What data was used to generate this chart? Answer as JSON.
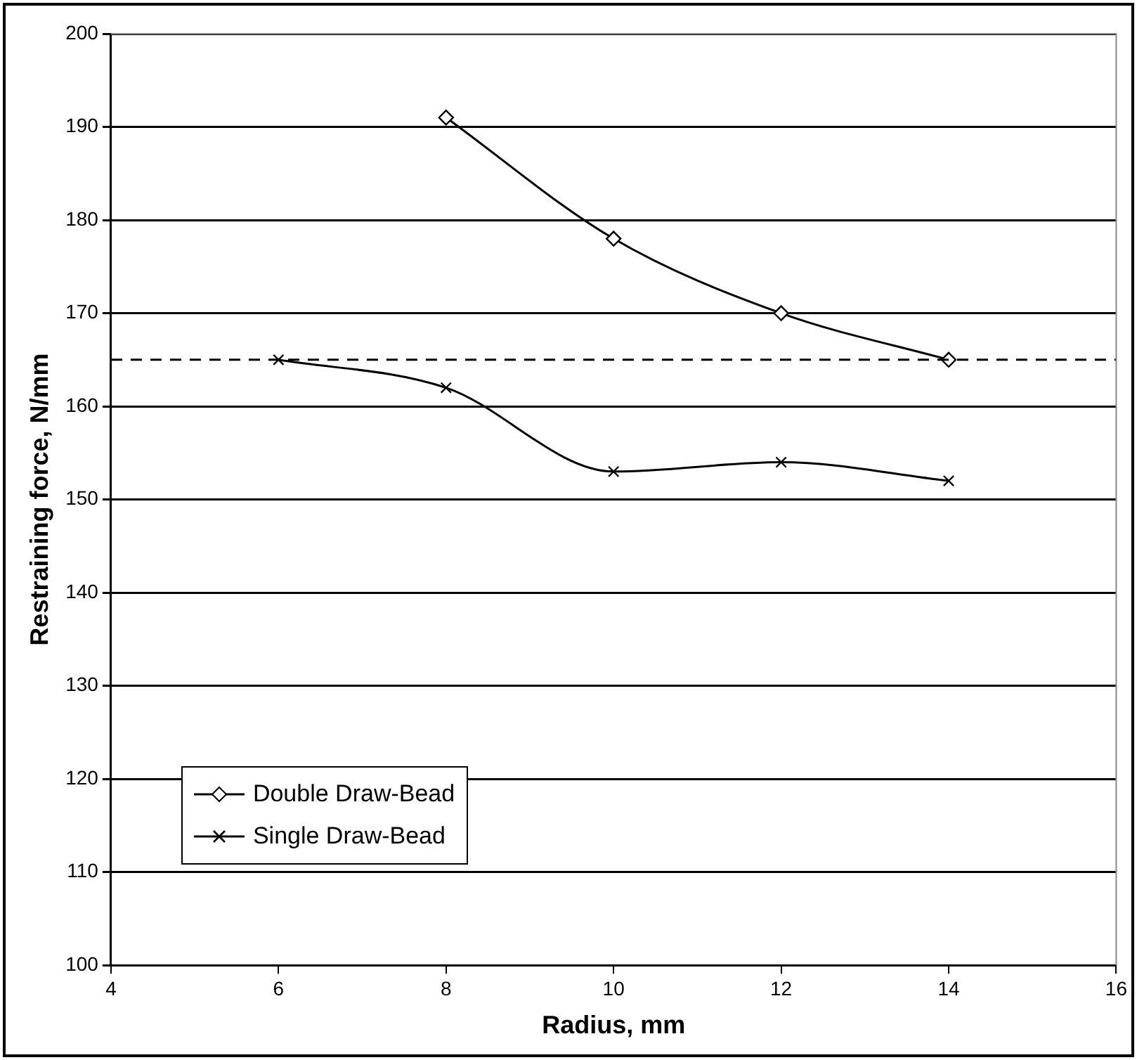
{
  "chart_data": {
    "type": "line",
    "xlabel": "Radius, mm",
    "ylabel": "Restraining force, N/mm",
    "xlim": [
      4,
      16
    ],
    "xticks": [
      4,
      6,
      8,
      10,
      12,
      14,
      16
    ],
    "ylim": [
      100,
      200
    ],
    "yticks": [
      100,
      110,
      120,
      130,
      140,
      150,
      160,
      170,
      180,
      190,
      200
    ],
    "grid": "y",
    "legend": "bottom left",
    "line_style": "solid",
    "series": [
      {
        "name": "Double Draw-Bead",
        "color": "#000000",
        "marker": "diamond",
        "x": [
          8,
          10,
          12,
          14
        ],
        "values": [
          191,
          178,
          170,
          165
        ]
      },
      {
        "name": "Single Draw-Bead",
        "color": "#000000",
        "marker": "cross",
        "x": [
          6,
          8,
          10,
          12,
          14
        ],
        "values": [
          165,
          162,
          153,
          154,
          152
        ]
      }
    ],
    "ref_lines": [
      {
        "axis": "y",
        "value": 165,
        "color": "#000000",
        "line_style": "dashed"
      }
    ]
  }
}
